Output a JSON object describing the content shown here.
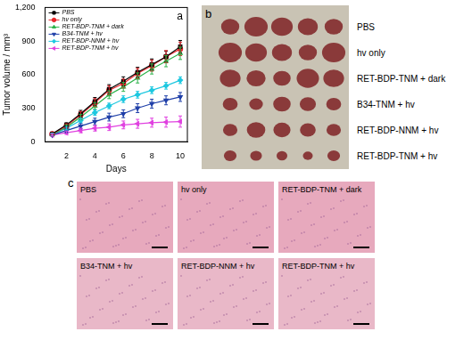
{
  "chart_data": {
    "type": "line",
    "annotations": [
      "a"
    ],
    "x_label": "Days",
    "y_label": "Tumor volume / mm³",
    "x": [
      1,
      2,
      3,
      4,
      5,
      6,
      7,
      8,
      9,
      10
    ],
    "xlim": [
      0.5,
      10.5
    ],
    "xticks": [
      2,
      4,
      6,
      8,
      10
    ],
    "ylim": [
      0,
      1200
    ],
    "yticks": [
      0,
      300,
      600,
      900,
      1200
    ],
    "grid": false,
    "legend": "upper left",
    "series": [
      {
        "name": "PBS",
        "color": "#000000",
        "marker": "square",
        "values": [
          70,
          150,
          250,
          360,
          470,
          540,
          620,
          690,
          760,
          850
        ],
        "errors": [
          10,
          20,
          30,
          35,
          40,
          40,
          45,
          50,
          50,
          55
        ]
      },
      {
        "name": "hv only",
        "color": "#e8262b",
        "marker": "circle",
        "values": [
          70,
          140,
          240,
          350,
          460,
          520,
          610,
          680,
          760,
          830
        ],
        "errors": [
          10,
          20,
          30,
          35,
          40,
          40,
          45,
          50,
          55,
          60
        ]
      },
      {
        "name": "RET-BDP-TNM + dark",
        "color": "#2db34a",
        "marker": "triangle-up",
        "values": [
          65,
          130,
          220,
          320,
          420,
          490,
          570,
          650,
          720,
          790
        ],
        "errors": [
          10,
          20,
          25,
          30,
          35,
          40,
          45,
          45,
          50,
          55
        ]
      },
      {
        "name": "B34-TNM + hv",
        "color": "#1f3fa8",
        "marker": "triangle-down",
        "values": [
          60,
          100,
          140,
          180,
          220,
          250,
          300,
          340,
          370,
          400
        ],
        "errors": [
          10,
          20,
          25,
          30,
          35,
          35,
          40,
          40,
          40,
          40
        ]
      },
      {
        "name": "RET-BDP-NNM + hv",
        "color": "#1ec8e0",
        "marker": "diamond",
        "values": [
          65,
          120,
          190,
          260,
          320,
          380,
          420,
          460,
          500,
          550
        ],
        "errors": [
          10,
          15,
          20,
          25,
          25,
          30,
          30,
          30,
          30,
          30
        ]
      },
      {
        "name": "RET-BDP-TNM + hv",
        "color": "#e040e0",
        "marker": "triangle-left",
        "values": [
          60,
          80,
          100,
          120,
          130,
          150,
          160,
          170,
          175,
          180
        ],
        "errors": [
          10,
          15,
          20,
          25,
          30,
          35,
          40,
          40,
          45,
          50
        ]
      }
    ]
  },
  "panel_b": {
    "label": "b",
    "rows": [
      "PBS",
      "hv only",
      "RET-BDP-TNM + dark",
      "B34-TNM + hv",
      "RET-BDP-NNM + hv",
      "RET-BDP-TNM + hv"
    ]
  },
  "panel_c": {
    "label": "c",
    "images": [
      "PBS",
      "hv only",
      "RET-BDP-TNM + dark",
      "B34-TNM + hv",
      "RET-BDP-NNM + hv",
      "RET-BDP-TNM + hv"
    ]
  }
}
